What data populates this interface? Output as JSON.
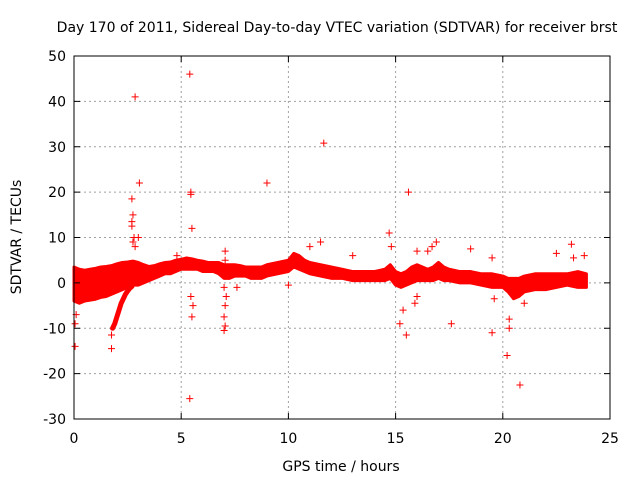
{
  "chart_data": {
    "type": "scatter",
    "title": "Day 170 of 2011, Sidereal Day-to-day VTEC variation (SDTVAR) for receiver brst",
    "xlabel": "GPS time / hours",
    "ylabel": "SDTVAR / TECUs",
    "xlim": [
      0,
      25
    ],
    "ylim": [
      -30,
      50
    ],
    "xticks": [
      0,
      5,
      10,
      15,
      20,
      25
    ],
    "yticks": [
      -30,
      -20,
      -10,
      0,
      10,
      20,
      30,
      40,
      50
    ],
    "xtick_labels": [
      "0",
      "5",
      "10",
      "15",
      "20",
      "25"
    ],
    "ytick_labels": [
      "-30",
      "-20",
      "-10",
      "0",
      "10",
      "20",
      "30",
      "40",
      "50"
    ],
    "grid": true,
    "marker": "+",
    "color": "#ff0000",
    "series": [
      {
        "name": "brst",
        "dense_trace": [
          [
            0.0,
            -4.0,
            3.5
          ],
          [
            0.25,
            -4.5,
            3.0
          ],
          [
            0.5,
            -4.0,
            2.8
          ],
          [
            0.75,
            -3.8,
            3.0
          ],
          [
            1.0,
            -3.6,
            3.2
          ],
          [
            1.25,
            -3.2,
            3.5
          ],
          [
            1.5,
            -3.0,
            3.6
          ],
          [
            1.75,
            -2.5,
            3.8
          ],
          [
            2.0,
            -2.0,
            4.2
          ],
          [
            2.25,
            -1.5,
            4.5
          ],
          [
            2.5,
            -1.0,
            4.6
          ],
          [
            2.75,
            -0.5,
            4.8
          ],
          [
            3.0,
            -0.5,
            4.5
          ],
          [
            3.25,
            0.0,
            4.0
          ],
          [
            3.5,
            0.5,
            3.6
          ],
          [
            3.75,
            1.0,
            3.8
          ],
          [
            4.0,
            1.5,
            4.2
          ],
          [
            4.25,
            2.0,
            4.5
          ],
          [
            4.5,
            2.0,
            4.6
          ],
          [
            4.75,
            2.5,
            5.0
          ],
          [
            5.0,
            3.0,
            5.2
          ],
          [
            5.25,
            3.0,
            5.5
          ],
          [
            5.5,
            3.0,
            5.3
          ],
          [
            5.75,
            3.0,
            5.0
          ],
          [
            6.0,
            2.5,
            4.8
          ],
          [
            6.25,
            2.5,
            4.5
          ],
          [
            6.5,
            2.5,
            4.5
          ],
          [
            6.75,
            2.0,
            4.5
          ],
          [
            7.0,
            1.0,
            4.0
          ],
          [
            7.25,
            1.0,
            4.0
          ],
          [
            7.5,
            1.5,
            4.0
          ],
          [
            7.75,
            1.5,
            3.8
          ],
          [
            8.0,
            1.5,
            3.5
          ],
          [
            8.25,
            1.0,
            3.5
          ],
          [
            8.75,
            1.0,
            3.5
          ],
          [
            9.0,
            1.5,
            4.0
          ],
          [
            9.5,
            2.0,
            4.5
          ],
          [
            10.0,
            2.5,
            5.0
          ],
          [
            10.25,
            3.5,
            6.5
          ],
          [
            10.5,
            3.0,
            6.0
          ],
          [
            10.75,
            2.5,
            5.0
          ],
          [
            11.0,
            2.0,
            4.5
          ],
          [
            11.5,
            1.5,
            4.0
          ],
          [
            12.0,
            1.0,
            3.5
          ],
          [
            12.5,
            1.0,
            3.0
          ],
          [
            13.0,
            0.5,
            2.5
          ],
          [
            13.5,
            0.5,
            2.5
          ],
          [
            14.0,
            0.5,
            2.5
          ],
          [
            14.5,
            0.5,
            3.0
          ],
          [
            14.75,
            1.0,
            4.0
          ],
          [
            15.0,
            -0.5,
            2.5
          ],
          [
            15.25,
            -1.0,
            2.0
          ],
          [
            15.5,
            -0.5,
            2.5
          ],
          [
            15.75,
            0.0,
            3.5
          ],
          [
            16.0,
            0.5,
            4.0
          ],
          [
            16.25,
            0.5,
            3.5
          ],
          [
            16.5,
            0.5,
            3.0
          ],
          [
            16.75,
            0.5,
            3.5
          ],
          [
            17.0,
            1.0,
            4.5
          ],
          [
            17.25,
            0.5,
            3.5
          ],
          [
            17.5,
            0.5,
            3.0
          ],
          [
            18.0,
            0.0,
            2.5
          ],
          [
            18.5,
            0.0,
            2.5
          ],
          [
            19.0,
            -0.5,
            2.0
          ],
          [
            19.5,
            -1.0,
            2.0
          ],
          [
            20.0,
            -1.0,
            1.5
          ],
          [
            20.25,
            -2.0,
            1.0
          ],
          [
            20.5,
            -3.5,
            1.0
          ],
          [
            20.75,
            -3.0,
            1.0
          ],
          [
            21.0,
            -2.0,
            1.5
          ],
          [
            21.5,
            -1.5,
            2.0
          ],
          [
            22.0,
            -1.5,
            2.0
          ],
          [
            22.5,
            -1.0,
            2.0
          ],
          [
            23.0,
            -0.5,
            2.0
          ],
          [
            23.5,
            -1.0,
            2.5
          ],
          [
            23.9,
            -1.0,
            2.0
          ]
        ],
        "secondary_trace": [
          [
            1.8,
            -10.0
          ],
          [
            1.9,
            -9.0
          ],
          [
            2.0,
            -7.5
          ],
          [
            2.1,
            -6.0
          ],
          [
            2.2,
            -4.5
          ],
          [
            2.3,
            -3.5
          ],
          [
            2.4,
            -2.5
          ],
          [
            2.5,
            -1.8
          ],
          [
            2.6,
            -1.2
          ],
          [
            2.7,
            -0.8
          ]
        ],
        "outliers": [
          [
            0.05,
            -14.0
          ],
          [
            0.05,
            -9.0
          ],
          [
            0.1,
            -7.0
          ],
          [
            1.75,
            -14.5
          ],
          [
            1.75,
            -11.5
          ],
          [
            2.7,
            18.5
          ],
          [
            2.75,
            15.0
          ],
          [
            2.7,
            13.5
          ],
          [
            2.7,
            12.5
          ],
          [
            2.8,
            10.0
          ],
          [
            2.75,
            9.0
          ],
          [
            2.85,
            8.0
          ],
          [
            2.85,
            41.0
          ],
          [
            3.05,
            22.0
          ],
          [
            3.0,
            10.0
          ],
          [
            4.8,
            6.0
          ],
          [
            5.4,
            46.0
          ],
          [
            5.45,
            20.0
          ],
          [
            5.45,
            19.5
          ],
          [
            5.5,
            12.0
          ],
          [
            5.45,
            -3.0
          ],
          [
            5.55,
            -5.0
          ],
          [
            5.5,
            -7.5
          ],
          [
            5.4,
            -25.5
          ],
          [
            7.0,
            -10.5
          ],
          [
            7.05,
            -9.5
          ],
          [
            7.0,
            -7.5
          ],
          [
            7.05,
            -5.0
          ],
          [
            7.1,
            -3.0
          ],
          [
            7.0,
            -1.0
          ],
          [
            7.05,
            5.0
          ],
          [
            7.05,
            7.0
          ],
          [
            7.6,
            -1.0
          ],
          [
            9.0,
            22.0
          ],
          [
            10.0,
            -0.5
          ],
          [
            11.0,
            8.0
          ],
          [
            11.5,
            9.0
          ],
          [
            11.65,
            30.8
          ],
          [
            13.0,
            6.0
          ],
          [
            14.7,
            11.0
          ],
          [
            14.8,
            8.0
          ],
          [
            15.2,
            -9.0
          ],
          [
            15.35,
            -6.0
          ],
          [
            15.5,
            -11.5
          ],
          [
            15.6,
            20.0
          ],
          [
            15.9,
            -4.5
          ],
          [
            16.0,
            -3.0
          ],
          [
            16.0,
            7.0
          ],
          [
            16.5,
            7.0
          ],
          [
            16.7,
            8.0
          ],
          [
            16.9,
            9.0
          ],
          [
            17.6,
            -9.0
          ],
          [
            18.5,
            7.5
          ],
          [
            19.5,
            -11.0
          ],
          [
            19.5,
            5.5
          ],
          [
            19.6,
            -3.5
          ],
          [
            20.2,
            -16.0
          ],
          [
            20.3,
            -10.0
          ],
          [
            20.3,
            -8.0
          ],
          [
            20.8,
            -22.5
          ],
          [
            21.0,
            -4.5
          ],
          [
            22.5,
            6.5
          ],
          [
            23.2,
            8.5
          ],
          [
            23.3,
            5.5
          ],
          [
            23.8,
            6.0
          ]
        ]
      }
    ]
  }
}
